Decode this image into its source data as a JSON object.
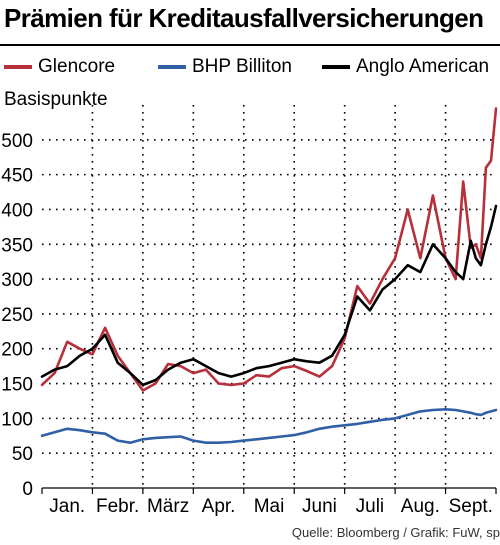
{
  "title": "Prämien für Kreditausfallversicherungen",
  "source": "Quelle: Bloomberg / Grafik: FuW, sp",
  "chart_data": {
    "type": "line",
    "ylabel": "Basispunkte",
    "xlabel": "",
    "categories": [
      "Jan.",
      "Febr.",
      "März",
      "Apr.",
      "Mai",
      "Juni",
      "Juli",
      "Aug.",
      "Sept."
    ],
    "ylim": [
      0,
      550
    ],
    "yticks": [
      0,
      50,
      100,
      150,
      200,
      250,
      300,
      350,
      400,
      450,
      500
    ],
    "grid": true,
    "legend_position": "top",
    "x": [
      0.0,
      0.25,
      0.5,
      0.75,
      1.0,
      1.25,
      1.5,
      1.75,
      2.0,
      2.25,
      2.5,
      2.75,
      3.0,
      3.25,
      3.5,
      3.75,
      4.0,
      4.25,
      4.5,
      4.75,
      5.0,
      5.25,
      5.5,
      5.75,
      6.0,
      6.25,
      6.5,
      6.75,
      7.0,
      7.25,
      7.5,
      7.75,
      8.0,
      8.2,
      8.35,
      8.5,
      8.6,
      8.7,
      8.8,
      8.9,
      9.0
    ],
    "series": [
      {
        "name": "Glencore",
        "color": "#b5303a",
        "values": [
          148,
          165,
          210,
          200,
          192,
          230,
          190,
          165,
          140,
          150,
          178,
          175,
          165,
          170,
          150,
          148,
          150,
          162,
          160,
          172,
          175,
          168,
          160,
          175,
          215,
          290,
          265,
          300,
          330,
          400,
          330,
          420,
          330,
          300,
          440,
          345,
          350,
          330,
          460,
          470,
          545
        ]
      },
      {
        "name": "BHP Billiton",
        "color": "#2f5fa5",
        "values": [
          75,
          80,
          85,
          83,
          80,
          78,
          68,
          65,
          70,
          72,
          73,
          74,
          68,
          65,
          65,
          66,
          68,
          70,
          72,
          74,
          76,
          80,
          85,
          88,
          90,
          92,
          95,
          98,
          100,
          105,
          110,
          112,
          113,
          112,
          110,
          108,
          106,
          105,
          108,
          110,
          112
        ]
      },
      {
        "name": "Anglo American",
        "color": "#000000",
        "values": [
          160,
          170,
          175,
          190,
          200,
          220,
          180,
          165,
          148,
          155,
          170,
          180,
          185,
          175,
          165,
          160,
          165,
          172,
          175,
          180,
          185,
          182,
          180,
          190,
          220,
          275,
          255,
          285,
          300,
          320,
          310,
          350,
          330,
          310,
          300,
          355,
          330,
          320,
          350,
          375,
          405
        ]
      }
    ]
  }
}
